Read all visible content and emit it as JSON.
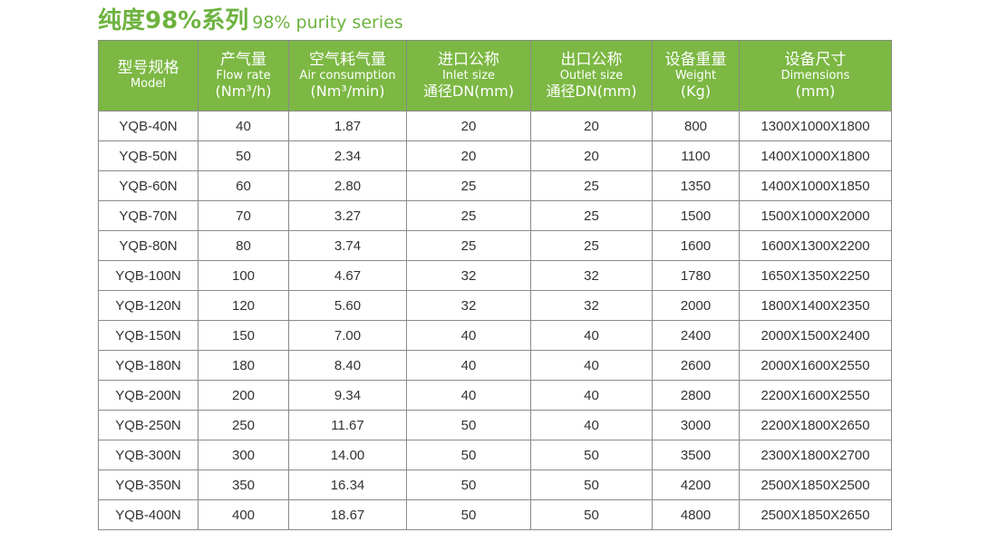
{
  "title": {
    "main": "纯度98%系列",
    "sub": "98% purity series"
  },
  "table": {
    "header": [
      [
        "型号规格",
        "Model"
      ],
      [
        "产气量",
        "Flow rate",
        "(Nm³/h)"
      ],
      [
        "空气耗气量",
        "Air consumption",
        "(Nm³/min)"
      ],
      [
        "进口公称",
        "Inlet size",
        "通径DN(mm)"
      ],
      [
        "出口公称",
        "Outlet size",
        "通径DN(mm)"
      ],
      [
        "设备重量",
        "Weight",
        "(Kg)"
      ],
      [
        "设备尺寸",
        "Dimensions",
        "(mm)"
      ]
    ],
    "rows": [
      [
        "YQB-40N",
        "40",
        "1.87",
        "20",
        "20",
        "800",
        "1300X1000X1800"
      ],
      [
        "YQB-50N",
        "50",
        "2.34",
        "20",
        "20",
        "1100",
        "1400X1000X1800"
      ],
      [
        "YQB-60N",
        "60",
        "2.80",
        "25",
        "25",
        "1350",
        "1400X1000X1850"
      ],
      [
        "YQB-70N",
        "70",
        "3.27",
        "25",
        "25",
        "1500",
        "1500X1000X2000"
      ],
      [
        "YQB-80N",
        "80",
        "3.74",
        "25",
        "25",
        "1600",
        "1600X1300X2200"
      ],
      [
        "YQB-100N",
        "100",
        "4.67",
        "32",
        "32",
        "1780",
        "1650X1350X2250"
      ],
      [
        "YQB-120N",
        "120",
        "5.60",
        "32",
        "32",
        "2000",
        "1800X1400X2350"
      ],
      [
        "YQB-150N",
        "150",
        "7.00",
        "40",
        "40",
        "2400",
        "2000X1500X2400"
      ],
      [
        "YQB-180N",
        "180",
        "8.40",
        "40",
        "40",
        "2600",
        "2000X1600X2550"
      ],
      [
        "YQB-200N",
        "200",
        "9.34",
        "40",
        "40",
        "2800",
        "2200X1600X2550"
      ],
      [
        "YQB-250N",
        "250",
        "11.67",
        "50",
        "40",
        "3000",
        "2200X1800X2650"
      ],
      [
        "YQB-300N",
        "300",
        "14.00",
        "50",
        "50",
        "3500",
        "2300X1800X2700"
      ],
      [
        "YQB-350N",
        "350",
        "16.34",
        "50",
        "50",
        "4200",
        "2500X1850X2500"
      ],
      [
        "YQB-400N",
        "400",
        "18.67",
        "50",
        "50",
        "4800",
        "2500X1850X2650"
      ]
    ]
  }
}
